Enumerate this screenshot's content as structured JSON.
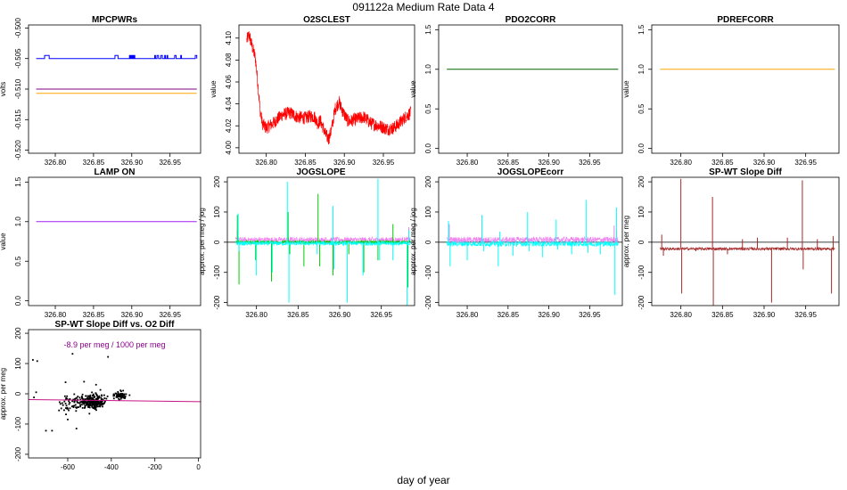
{
  "figure": {
    "title_id": "091122a",
    "title_text": "Medium Rate Data 4",
    "xlabel": "day of year"
  },
  "colors": {
    "blue": "#0000ff",
    "purple": "#7f007f",
    "orange": "#ffa500",
    "red": "#ff0000",
    "darkgreen": "#006400",
    "violet": "#a020f0",
    "green": "#00cd00",
    "cyan": "#00ffff",
    "magenta": "#ee82ee",
    "brown": "#a52a2a",
    "black": "#000000",
    "magenta_line": "#c71585",
    "annot_purple": "#8b008b"
  },
  "chart_data": [
    {
      "id": "mpcpwrs",
      "type": "line",
      "title": "MPCPWRs",
      "ylabel": "volts",
      "xlim": [
        326.765,
        326.99
      ],
      "ylim": [
        -0.5205,
        -0.4995
      ],
      "xticks": [
        "326.80",
        "326.85",
        "326.90",
        "326.95"
      ],
      "xtick_values": [
        326.8,
        326.85,
        326.9,
        326.95
      ],
      "yticks": [
        "-0.520",
        "-0.515",
        "-0.510",
        "-0.505",
        "-0.500"
      ],
      "ytick_values": [
        -0.52,
        -0.515,
        -0.51,
        -0.505,
        -0.5
      ],
      "series": [
        {
          "color": "blue",
          "kind": "step",
          "x_range": [
            326.775,
            326.985
          ],
          "base": -0.505,
          "high": -0.5045,
          "spikes": [
            [
              326.786,
              326.792
            ],
            [
              326.878,
              326.882
            ],
            [
              326.897,
              326.898
            ],
            [
              326.899,
              326.9
            ],
            [
              326.901,
              326.902
            ],
            [
              326.903,
              326.904
            ],
            [
              326.93,
              326.931
            ],
            [
              326.933,
              326.935
            ],
            [
              326.938,
              326.94
            ],
            [
              326.943,
              326.944
            ],
            [
              326.946,
              326.947
            ],
            [
              326.956,
              326.958
            ],
            [
              326.964,
              326.965
            ],
            [
              326.983,
              326.985
            ]
          ]
        },
        {
          "color": "purple",
          "kind": "flat",
          "x_range": [
            326.775,
            326.985
          ],
          "value": -0.51
        },
        {
          "color": "orange",
          "kind": "flat",
          "x_range": [
            326.775,
            326.985
          ],
          "value": -0.5107
        }
      ]
    },
    {
      "id": "o2sclest",
      "type": "line",
      "title": "O2SCLEST",
      "ylabel": "value",
      "xlim": [
        326.765,
        326.99
      ],
      "ylim": [
        3.995,
        4.112
      ],
      "xticks": [
        "326.80",
        "326.85",
        "326.90",
        "326.95"
      ],
      "xtick_values": [
        326.8,
        326.85,
        326.9,
        326.95
      ],
      "yticks": [
        "4.00",
        "4.02",
        "4.04",
        "4.06",
        "4.08",
        "4.10"
      ],
      "ytick_values": [
        4.0,
        4.02,
        4.04,
        4.06,
        4.08,
        4.1
      ],
      "series": [
        {
          "color": "red",
          "kind": "noisy",
          "noise": 0.006,
          "points": [
            [
              326.775,
              4.098
            ],
            [
              326.778,
              4.103
            ],
            [
              326.782,
              4.092
            ],
            [
              326.786,
              4.082
            ],
            [
              326.789,
              4.06
            ],
            [
              326.792,
              4.035
            ],
            [
              326.795,
              4.022
            ],
            [
              326.8,
              4.018
            ],
            [
              326.81,
              4.023
            ],
            [
              326.82,
              4.03
            ],
            [
              326.83,
              4.032
            ],
            [
              326.84,
              4.028
            ],
            [
              326.85,
              4.027
            ],
            [
              326.857,
              4.029
            ],
            [
              326.862,
              4.028
            ],
            [
              326.866,
              4.022
            ],
            [
              326.869,
              4.025
            ],
            [
              326.872,
              4.02
            ],
            [
              326.876,
              4.012
            ],
            [
              326.88,
              4.008
            ],
            [
              326.884,
              4.018
            ],
            [
              326.888,
              4.035
            ],
            [
              326.893,
              4.042
            ],
            [
              326.898,
              4.033
            ],
            [
              326.905,
              4.024
            ],
            [
              326.915,
              4.026
            ],
            [
              326.925,
              4.028
            ],
            [
              326.935,
              4.022
            ],
            [
              326.945,
              4.02
            ],
            [
              326.955,
              4.017
            ],
            [
              326.963,
              4.018
            ],
            [
              326.97,
              4.022
            ],
            [
              326.978,
              4.028
            ],
            [
              326.985,
              4.032
            ]
          ]
        }
      ]
    },
    {
      "id": "pdo2corr",
      "type": "line",
      "title": "PDO2CORR",
      "ylabel": "value",
      "xlim": [
        326.765,
        326.99
      ],
      "ylim": [
        -0.06,
        1.56
      ],
      "xticks": [
        "326.80",
        "326.85",
        "326.90",
        "326.95"
      ],
      "xtick_values": [
        326.8,
        326.85,
        326.9,
        326.95
      ],
      "yticks": [
        "0.0",
        "0.5",
        "1.0",
        "1.5"
      ],
      "ytick_values": [
        0.0,
        0.5,
        1.0,
        1.5
      ],
      "series": [
        {
          "color": "darkgreen",
          "kind": "flat",
          "x_range": [
            326.775,
            326.985
          ],
          "value": 1.0
        }
      ]
    },
    {
      "id": "pdrefcorr",
      "type": "line",
      "title": "PDREFCORR",
      "ylabel": "value",
      "xlim": [
        326.765,
        326.99
      ],
      "ylim": [
        -0.06,
        1.56
      ],
      "xticks": [
        "326.80",
        "326.85",
        "326.90",
        "326.95"
      ],
      "xtick_values": [
        326.8,
        326.85,
        326.9,
        326.95
      ],
      "yticks": [
        "0.0",
        "0.5",
        "1.0",
        "1.5"
      ],
      "ytick_values": [
        0.0,
        0.5,
        1.0,
        1.5
      ],
      "series": [
        {
          "color": "orange",
          "kind": "flat",
          "x_range": [
            326.775,
            326.985
          ],
          "value": 1.0
        }
      ]
    },
    {
      "id": "lampon",
      "type": "line",
      "title": "LAMP ON",
      "ylabel": "value",
      "xlim": [
        326.765,
        326.99
      ],
      "ylim": [
        -0.06,
        1.56
      ],
      "xticks": [
        "326.80",
        "326.85",
        "326.90",
        "326.95"
      ],
      "xtick_values": [
        326.8,
        326.85,
        326.9,
        326.95
      ],
      "yticks": [
        "0.0",
        "0.5",
        "1.0",
        "1.5"
      ],
      "ytick_values": [
        0.0,
        0.5,
        1.0,
        1.5
      ],
      "series": [
        {
          "color": "violet",
          "kind": "flat",
          "x_range": [
            326.775,
            326.985
          ],
          "value": 1.0
        }
      ]
    },
    {
      "id": "jogslope",
      "type": "line",
      "title": "JOGSLOPE",
      "ylabel": "approx. per meg / jog",
      "xlim": [
        326.765,
        326.99
      ],
      "ylim": [
        -210,
        215
      ],
      "xticks": [
        "326.80",
        "326.85",
        "326.90",
        "326.95"
      ],
      "xtick_values": [
        326.8,
        326.85,
        326.9,
        326.95
      ],
      "yticks": [
        "-200",
        "-100",
        "0",
        "100",
        "200"
      ],
      "ytick_values": [
        -200,
        -100,
        0,
        100,
        200
      ],
      "zero_line": true,
      "series": [
        {
          "color": "magenta",
          "kind": "band",
          "x_range": [
            326.775,
            326.985
          ],
          "center": 8,
          "noise": 9,
          "spikes": [
            [
              326.777,
              40
            ],
            [
              326.983,
              50
            ]
          ]
        },
        {
          "color": "green",
          "kind": "band",
          "x_range": [
            326.775,
            326.985
          ],
          "center": 0,
          "noise": 6,
          "spikes": [
            [
              326.777,
              90
            ],
            [
              326.779,
              -140
            ],
            [
              326.799,
              -60
            ],
            [
              326.818,
              -130
            ],
            [
              326.838,
              100
            ],
            [
              326.84,
              -40
            ],
            [
              326.857,
              -80
            ],
            [
              326.874,
              160
            ],
            [
              326.876,
              -80
            ],
            [
              326.892,
              -110
            ],
            [
              326.911,
              -40
            ],
            [
              326.929,
              -100
            ],
            [
              326.946,
              -60
            ],
            [
              326.964,
              60
            ],
            [
              326.982,
              -150
            ]
          ]
        },
        {
          "color": "cyan",
          "kind": "band",
          "x_range": [
            326.775,
            326.985
          ],
          "center": -4,
          "noise": 7,
          "spikes": [
            [
              326.778,
              95
            ],
            [
              326.779,
              -30
            ],
            [
              326.8,
              -110
            ],
            [
              326.819,
              -100
            ],
            [
              326.837,
              200
            ],
            [
              326.839,
              -200
            ],
            [
              326.873,
              -40
            ],
            [
              326.892,
              120
            ],
            [
              326.893,
              -90
            ],
            [
              326.909,
              -200
            ],
            [
              326.928,
              -110
            ],
            [
              326.946,
              210
            ],
            [
              326.948,
              -60
            ],
            [
              326.964,
              -60
            ],
            [
              326.981,
              -210
            ],
            [
              326.983,
              40
            ]
          ]
        }
      ]
    },
    {
      "id": "jogslopecorr",
      "type": "line",
      "title": "JOGSLOPEcorr",
      "ylabel": "approx. per meg / jog",
      "xlim": [
        326.765,
        326.99
      ],
      "ylim": [
        -210,
        215
      ],
      "xticks": [
        "326.80",
        "326.85",
        "326.90",
        "326.95"
      ],
      "xtick_values": [
        326.8,
        326.85,
        326.9,
        326.95
      ],
      "yticks": [
        "-200",
        "-100",
        "0",
        "100",
        "200"
      ],
      "ytick_values": [
        -200,
        -100,
        0,
        100,
        200
      ],
      "zero_line": true,
      "series": [
        {
          "color": "magenta",
          "kind": "band",
          "x_range": [
            326.775,
            326.985
          ],
          "center": 8,
          "noise": 10,
          "spikes": [
            [
              326.778,
              60
            ],
            [
              326.98,
              55
            ],
            [
              326.983,
              40
            ]
          ]
        },
        {
          "color": "cyan",
          "kind": "band",
          "x_range": [
            326.775,
            326.985
          ],
          "center": -5,
          "noise": 9,
          "spikes": [
            [
              326.777,
              70
            ],
            [
              326.779,
              -80
            ],
            [
              326.8,
              -60
            ],
            [
              326.818,
              90
            ],
            [
              326.82,
              -30
            ],
            [
              326.838,
              -80
            ],
            [
              326.84,
              35
            ],
            [
              326.856,
              -45
            ],
            [
              326.874,
              100
            ],
            [
              326.876,
              -30
            ],
            [
              326.892,
              -50
            ],
            [
              326.909,
              75
            ],
            [
              326.911,
              -25
            ],
            [
              326.928,
              -40
            ],
            [
              326.946,
              140
            ],
            [
              326.948,
              -35
            ],
            [
              326.963,
              -40
            ],
            [
              326.981,
              -175
            ],
            [
              326.983,
              115
            ]
          ]
        }
      ]
    },
    {
      "id": "spwt",
      "type": "line",
      "title": "SP-WT Slope Diff",
      "ylabel": "approx. per meg",
      "xlim": [
        326.765,
        326.99
      ],
      "ylim": [
        -210,
        215
      ],
      "xticks": [
        "326.80",
        "326.85",
        "326.90",
        "326.95"
      ],
      "xtick_values": [
        326.8,
        326.85,
        326.9,
        326.95
      ],
      "yticks": [
        "-200",
        "-100",
        "0",
        "100",
        "200"
      ],
      "ytick_values": [
        -200,
        -100,
        0,
        100,
        200
      ],
      "zero_line": true,
      "series": [
        {
          "color": "brown",
          "kind": "band",
          "x_range": [
            326.775,
            326.985
          ],
          "center": -22,
          "noise": 5,
          "spikes": [
            [
              326.777,
              25
            ],
            [
              326.779,
              -45
            ],
            [
              326.8,
              210
            ],
            [
              326.801,
              -170
            ],
            [
              326.818,
              -30
            ],
            [
              326.838,
              150
            ],
            [
              326.839,
              -210
            ],
            [
              326.856,
              -40
            ],
            [
              326.874,
              10
            ],
            [
              326.892,
              15
            ],
            [
              326.909,
              -200
            ],
            [
              326.928,
              15
            ],
            [
              326.946,
              205
            ],
            [
              326.947,
              -90
            ],
            [
              326.964,
              10
            ],
            [
              326.981,
              -170
            ],
            [
              326.983,
              20
            ]
          ]
        }
      ]
    },
    {
      "id": "scatter",
      "type": "scatter",
      "title": "SP-WT Slope Diff vs. O2 Diff",
      "ylabel": "approx. per meg",
      "annotation": "-8.9 per meg / 1000 per meg",
      "xlim": [
        -780,
        10
      ],
      "ylim": [
        -212,
        212
      ],
      "xticks": [
        "-600",
        "-400",
        "-200",
        "0"
      ],
      "xtick_values": [
        -600,
        -400,
        -200,
        0
      ],
      "yticks": [
        "-200",
        "-100",
        "0",
        "100",
        "200"
      ],
      "ytick_values": [
        -200,
        -100,
        0,
        100,
        200
      ],
      "fit_line": {
        "color": "magenta_line",
        "slope": -0.0089,
        "intercept": -26
      },
      "clusters": [
        {
          "cx": -490,
          "cy": -28,
          "sx": 30,
          "sy": 12,
          "n": 260
        },
        {
          "cx": -360,
          "cy": -5,
          "sx": 14,
          "sy": 7,
          "n": 60
        },
        {
          "cx": -590,
          "cy": -35,
          "sx": 28,
          "sy": 18,
          "n": 40
        }
      ],
      "outliers": [
        [
          -760,
          112
        ],
        [
          -740,
          108
        ],
        [
          -578,
          132
        ],
        [
          -415,
          122
        ],
        [
          -700,
          -122
        ],
        [
          -672,
          -122
        ],
        [
          -600,
          -85
        ],
        [
          -560,
          -115
        ],
        [
          -745,
          5
        ],
        [
          -755,
          -12
        ],
        [
          -525,
          40
        ],
        [
          -610,
          38
        ],
        [
          -470,
          30
        ],
        [
          -640,
          -55
        ]
      ]
    }
  ]
}
